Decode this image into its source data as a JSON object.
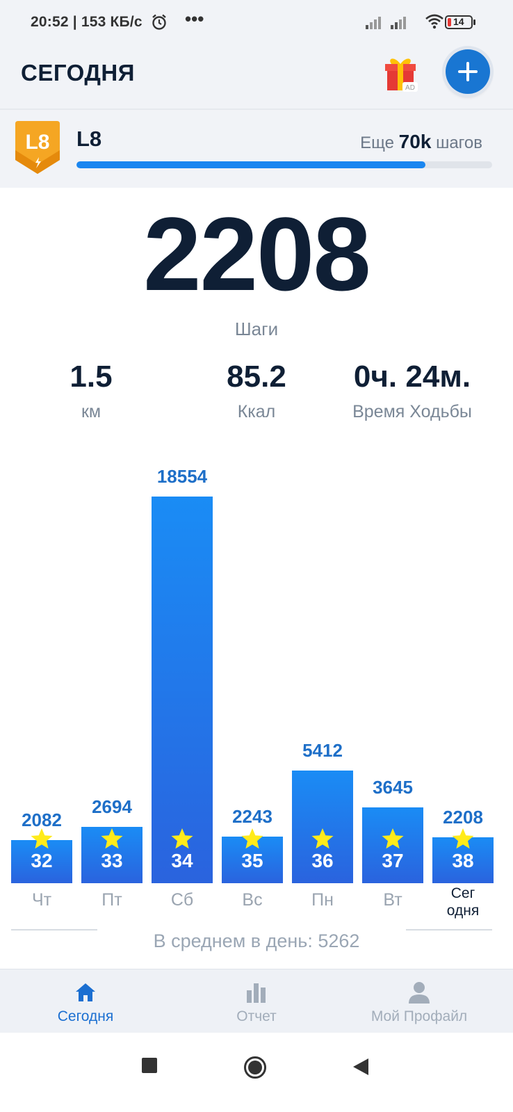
{
  "status_bar": {
    "time_and_speed": "20:52 | 153 КБ/с",
    "more": "•••",
    "battery": "14"
  },
  "header": {
    "title": "СЕГОДНЯ",
    "gift_badge": "AD"
  },
  "level": {
    "badge": "L8",
    "name": "L8",
    "remaining_prefix": "Еще",
    "remaining_value": "70k",
    "remaining_suffix": "шагов",
    "progress": 0.84
  },
  "today": {
    "steps": "2208",
    "steps_label": "Шаги",
    "stats": [
      {
        "value": "1.5",
        "label": "км"
      },
      {
        "value": "85.2",
        "label": "Ккал"
      },
      {
        "value": "0ч. 24м.",
        "label": "Время Ходьбы"
      }
    ]
  },
  "chart_data": {
    "type": "bar",
    "categories": [
      "Чт",
      "Пт",
      "Сб",
      "Вс",
      "Пн",
      "Вт",
      "Сег одня"
    ],
    "values": [
      2082,
      2694,
      18554,
      2243,
      5412,
      3645,
      2208
    ],
    "value_labels": [
      "2082",
      "2694",
      "18554",
      "2243",
      "5412",
      "3645",
      "2208"
    ],
    "day_numbers": [
      "32",
      "33",
      "34",
      "35",
      "36",
      "37",
      "38"
    ],
    "title": "",
    "xlabel": "",
    "ylabel": "",
    "colors": {
      "bar_top": "#1a8cf5",
      "bar_bottom": "#2a63de",
      "star": "#ffeb1a"
    },
    "grid": false
  },
  "average": "В среднем в день: 5262",
  "bottom_nav": [
    {
      "label": "Сегодня",
      "icon": "home-icon",
      "active": true
    },
    {
      "label": "Отчет",
      "icon": "bar-chart-icon",
      "active": false
    },
    {
      "label": "Мой Профайл",
      "icon": "person-icon",
      "active": false
    }
  ]
}
